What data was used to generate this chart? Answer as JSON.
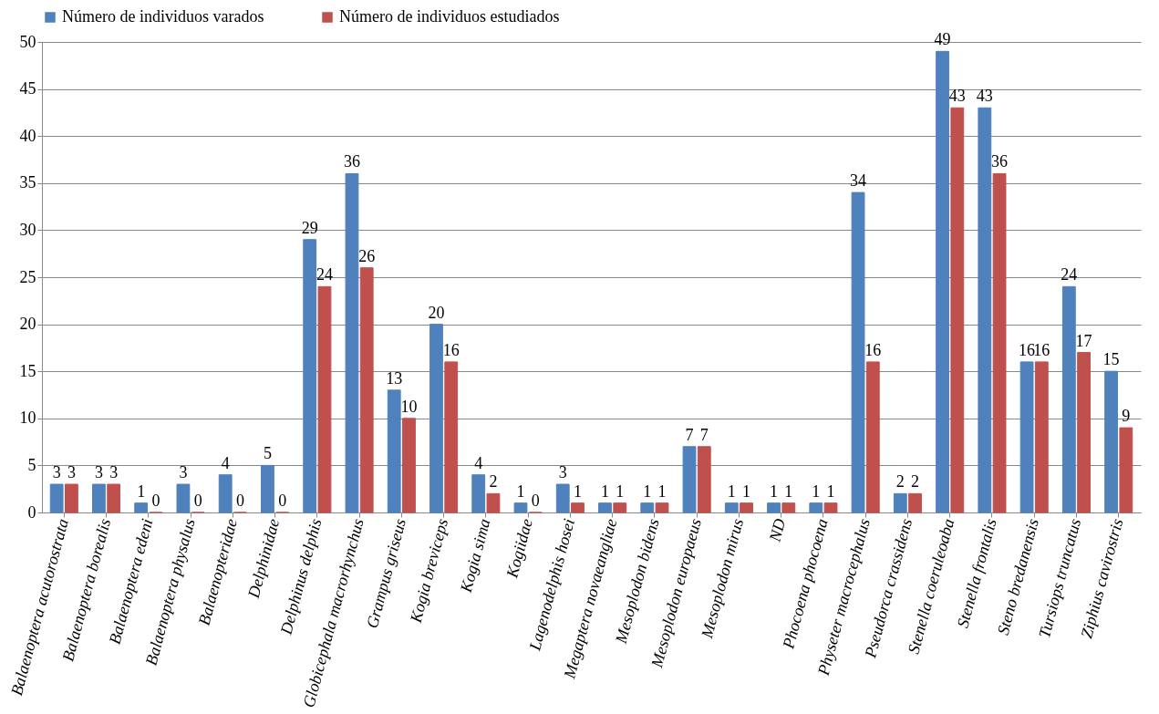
{
  "chart_data": {
    "type": "bar",
    "categories": [
      "Balaenoptera acutorostrata",
      "Balaenoptera borealis",
      "Balaenoptera edeni",
      "Balaenoptera physalus",
      "Balaenopteridae",
      "Delphinidae",
      "Delphinus delphis",
      "Globicephala macrorhynchus",
      "Grampus griseus",
      "Kogia breviceps",
      "Kogia sima",
      "Kogiidae",
      "Lagenodelphis hosei",
      "Megaptera novaeangliae",
      "Mesoplodon bidens",
      "Mesoplodon europaeus",
      "Mesoplodon mirus",
      "ND",
      "Phocoena phocoena",
      "Physeter macrocephalus",
      "Pseudorca crassidens",
      "Stenella coeruleoaba",
      "Stenella frontalis",
      "Steno bredanensis",
      "Tursiops truncatus",
      "Ziphius cavirostris"
    ],
    "series": [
      {
        "name": "Número de individuos varados",
        "color": "#4f81bd",
        "values": [
          3,
          3,
          1,
          3,
          4,
          5,
          29,
          36,
          13,
          20,
          4,
          1,
          3,
          1,
          1,
          7,
          1,
          1,
          1,
          34,
          2,
          49,
          43,
          16,
          24,
          15
        ]
      },
      {
        "name": "Número de individuos estudiados",
        "color": "#c0504d",
        "values": [
          3,
          3,
          0,
          0,
          0,
          0,
          24,
          26,
          10,
          16,
          2,
          0,
          1,
          1,
          1,
          7,
          1,
          1,
          1,
          16,
          2,
          43,
          36,
          16,
          17,
          9
        ]
      }
    ],
    "ylim": [
      0,
      50
    ],
    "yticks": [
      0,
      5,
      10,
      15,
      20,
      25,
      30,
      35,
      40,
      45,
      50
    ],
    "grid": "y",
    "legend": "top",
    "data_labels": true
  }
}
